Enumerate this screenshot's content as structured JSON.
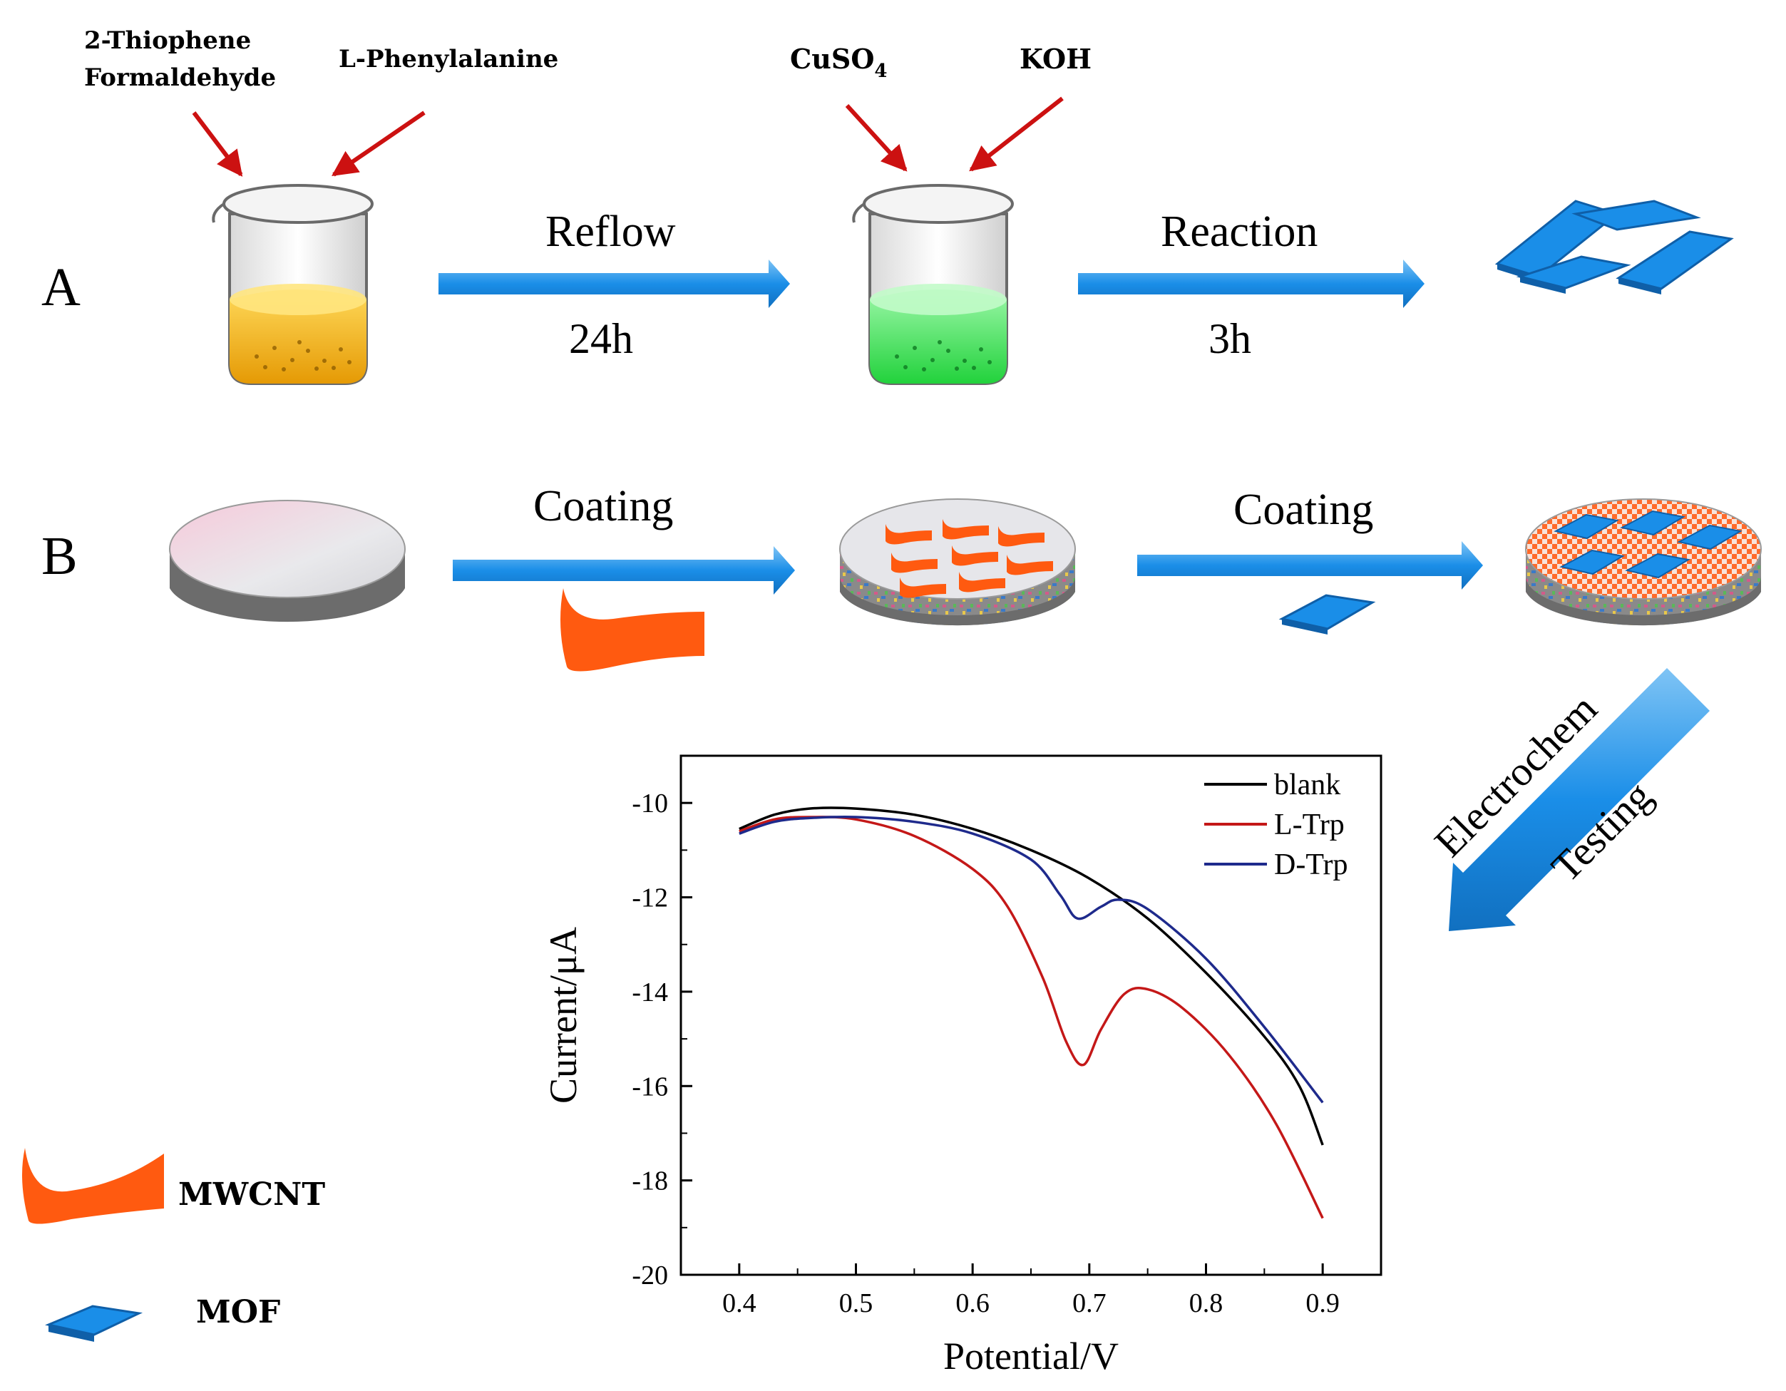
{
  "section_a": {
    "label": "A",
    "reagent_1": "2-Thiophene",
    "reagent_1_line2": "Formaldehyde",
    "reagent_2": "L-Phenylalanine",
    "reagent_3": "CuSO",
    "reagent_3_sub": "4",
    "reagent_4": "KOH",
    "step_1_top": "Reflow",
    "step_1_bottom": "24h",
    "step_2_top": "Reaction",
    "step_2_bottom": "3h"
  },
  "section_b": {
    "label": "B",
    "step_1_top": "Coating",
    "step_2_top": "Coating",
    "step_3_line1": "Electrochem",
    "step_3_line2": "Testing"
  },
  "legend": {
    "mwcnt": "MWCNT",
    "mof": "MOF"
  },
  "colors": {
    "arrow_blue": "#1e8fe6",
    "red_arrow": "#cc1111",
    "yellow_liquid": "#f0b414",
    "green_liquid": "#3ee25a",
    "mof_blue": "#1a8ee8",
    "mwcnt_orange": "#ff5a10",
    "electrode_grey": "#7a7a7a"
  },
  "chart_data": {
    "type": "line",
    "title": "",
    "xlabel": "Potential/V",
    "ylabel": "Current/μA",
    "xlim": [
      0.35,
      0.95
    ],
    "ylim": [
      -20,
      -9
    ],
    "x_ticks": [
      "0.4",
      "0.5",
      "0.6",
      "0.7",
      "0.8",
      "0.9"
    ],
    "x_tick_values": [
      0.4,
      0.5,
      0.6,
      0.7,
      0.8,
      0.9
    ],
    "y_ticks": [
      "-10",
      "-12",
      "-14",
      "-16",
      "-18",
      "-20"
    ],
    "y_tick_values": [
      -10,
      -12,
      -14,
      -16,
      -18,
      -20
    ],
    "legend_position": "top-right",
    "series": [
      {
        "name": "blank",
        "color": "#000000",
        "x": [
          0.4,
          0.43,
          0.46,
          0.5,
          0.55,
          0.6,
          0.65,
          0.7,
          0.75,
          0.8,
          0.85,
          0.88,
          0.9
        ],
        "y": [
          -10.55,
          -10.25,
          -10.12,
          -10.12,
          -10.25,
          -10.55,
          -11.0,
          -11.6,
          -12.45,
          -13.6,
          -14.95,
          -16.0,
          -17.25
        ]
      },
      {
        "name": "L-Trp",
        "color": "#c41818",
        "x": [
          0.4,
          0.43,
          0.46,
          0.5,
          0.55,
          0.6,
          0.63,
          0.66,
          0.68,
          0.695,
          0.71,
          0.73,
          0.75,
          0.78,
          0.82,
          0.86,
          0.9
        ],
        "y": [
          -10.6,
          -10.35,
          -10.3,
          -10.35,
          -10.7,
          -11.4,
          -12.2,
          -13.7,
          -15.05,
          -15.55,
          -14.8,
          -14.05,
          -13.95,
          -14.35,
          -15.35,
          -16.8,
          -18.8
        ]
      },
      {
        "name": "D-Trp",
        "color": "#1e2a8c",
        "x": [
          0.4,
          0.43,
          0.46,
          0.5,
          0.55,
          0.6,
          0.65,
          0.675,
          0.69,
          0.71,
          0.725,
          0.75,
          0.8,
          0.85,
          0.9
        ],
        "y": [
          -10.65,
          -10.4,
          -10.32,
          -10.3,
          -10.4,
          -10.65,
          -11.2,
          -11.95,
          -12.45,
          -12.2,
          -12.05,
          -12.25,
          -13.3,
          -14.75,
          -16.35
        ]
      }
    ]
  }
}
